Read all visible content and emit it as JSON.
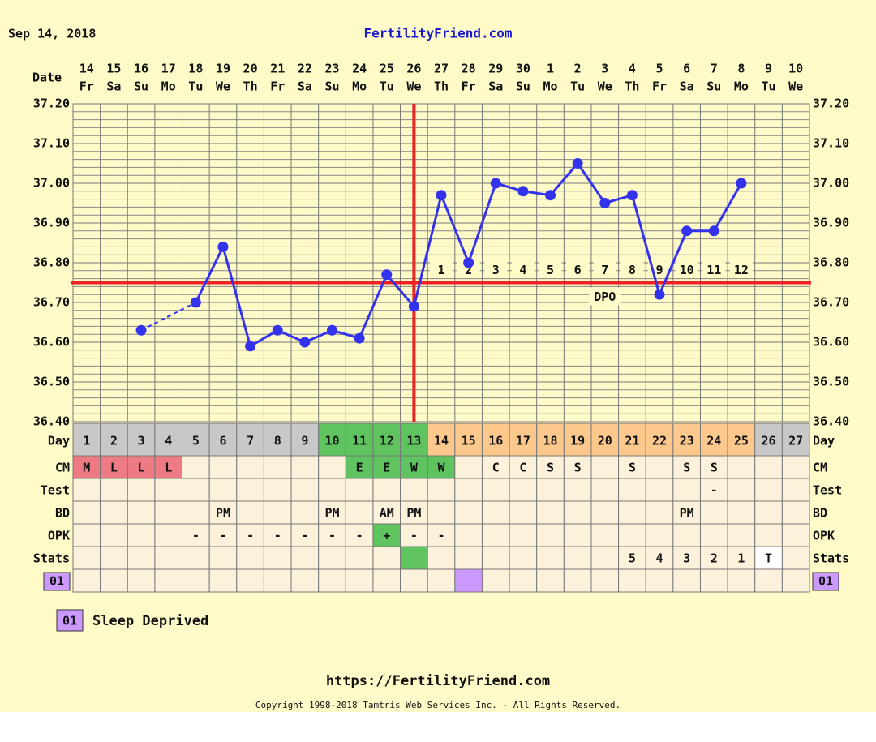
{
  "chart_data": {
    "type": "line",
    "date_text": "Sep 14, 2018",
    "title": "FertilityFriend.com",
    "x_label": "Date",
    "day_label": "Day",
    "dates": [
      "14",
      "15",
      "16",
      "17",
      "18",
      "19",
      "20",
      "21",
      "22",
      "23",
      "24",
      "25",
      "26",
      "27",
      "28",
      "29",
      "30",
      "1",
      "2",
      "3",
      "4",
      "5",
      "6",
      "7",
      "8",
      "9",
      "10"
    ],
    "weekdays": [
      "Fr",
      "Sa",
      "Su",
      "Mo",
      "Tu",
      "We",
      "Th",
      "Fr",
      "Sa",
      "Su",
      "Mo",
      "Tu",
      "We",
      "Th",
      "Fr",
      "Sa",
      "Su",
      "Mo",
      "Tu",
      "We",
      "Th",
      "Fr",
      "Sa",
      "Su",
      "Mo",
      "Tu",
      "We"
    ],
    "days": [
      1,
      2,
      3,
      4,
      5,
      6,
      7,
      8,
      9,
      10,
      11,
      12,
      13,
      14,
      15,
      16,
      17,
      18,
      19,
      20,
      21,
      22,
      23,
      24,
      25,
      26,
      27
    ],
    "day_colors": [
      "#c8c8c8",
      "#c8c8c8",
      "#c8c8c8",
      "#c8c8c8",
      "#c8c8c8",
      "#c8c8c8",
      "#c8c8c8",
      "#c8c8c8",
      "#c8c8c8",
      "#5fc35f",
      "#5fc35f",
      "#5fc35f",
      "#5fc35f",
      "#fcc88c",
      "#fcc88c",
      "#fcc88c",
      "#fcc88c",
      "#fcc88c",
      "#fcc88c",
      "#fcc88c",
      "#fcc88c",
      "#fcc88c",
      "#fcc88c",
      "#fcc88c",
      "#fcc88c",
      "#c8c8c8",
      "#c8c8c8"
    ],
    "values": [
      null,
      null,
      36.63,
      null,
      36.7,
      36.84,
      36.59,
      36.63,
      36.6,
      36.63,
      36.61,
      36.77,
      36.69,
      36.97,
      36.8,
      37.0,
      36.98,
      36.97,
      37.05,
      36.95,
      36.97,
      36.72,
      36.88,
      36.88,
      37.0,
      null,
      null
    ],
    "color": "#3333ee",
    "ylim": [
      36.4,
      37.2
    ],
    "yticks": [
      {
        "value": 36.4,
        "label": "36.40"
      },
      {
        "value": 36.5,
        "label": "36.50"
      },
      {
        "value": 36.6,
        "label": "36.60"
      },
      {
        "value": 36.7,
        "label": "36.70"
      },
      {
        "value": 36.8,
        "label": "36.80"
      },
      {
        "value": 36.9,
        "label": "36.90"
      },
      {
        "value": 37.0,
        "label": "37.00"
      },
      {
        "value": 37.1,
        "label": "37.10"
      },
      {
        "value": 37.2,
        "label": "37.20"
      }
    ],
    "coverline": 36.75,
    "ovulation_day": 13,
    "line_color": "#ee2222",
    "dpo": [
      null,
      null,
      null,
      null,
      null,
      null,
      null,
      null,
      null,
      null,
      null,
      null,
      null,
      1,
      2,
      3,
      4,
      5,
      6,
      7,
      8,
      9,
      10,
      11,
      12,
      null,
      null
    ],
    "dpo_label": "DPO",
    "rows": [
      {
        "label": "CM",
        "cells": [
          "M",
          "L",
          "L",
          "L",
          null,
          null,
          null,
          null,
          null,
          null,
          "E",
          "E",
          "W",
          "W",
          null,
          "C",
          "C",
          "S",
          "S",
          null,
          "S",
          null,
          "S",
          "S",
          null,
          null,
          null
        ],
        "colors": [
          "#ee7b83",
          "#ee7b83",
          "#ee7b83",
          "#ee7b83",
          null,
          null,
          null,
          null,
          null,
          null,
          "#5fc35f",
          "#5fc35f",
          "#5fc35f",
          "#5fc35f",
          null,
          null,
          null,
          null,
          null,
          null,
          null,
          null,
          null,
          null,
          null,
          null,
          null
        ]
      },
      {
        "label": "Test",
        "cells": [
          null,
          null,
          null,
          null,
          null,
          null,
          null,
          null,
          null,
          null,
          null,
          null,
          null,
          null,
          null,
          null,
          null,
          null,
          null,
          null,
          null,
          null,
          null,
          "-",
          null,
          null,
          null
        ]
      },
      {
        "label": "BD",
        "cells": [
          null,
          null,
          null,
          null,
          null,
          "PM",
          null,
          null,
          null,
          "PM",
          null,
          "AM",
          "PM",
          null,
          null,
          null,
          null,
          null,
          null,
          null,
          null,
          null,
          "PM",
          null,
          null,
          null,
          null
        ]
      },
      {
        "label": "OPK",
        "cells": [
          null,
          null,
          null,
          null,
          "-",
          "-",
          "-",
          "-",
          "-",
          "-",
          "-",
          "+",
          "-",
          "-",
          null,
          null,
          null,
          null,
          null,
          null,
          null,
          null,
          null,
          null,
          null,
          null,
          null
        ],
        "colors": [
          null,
          null,
          null,
          null,
          null,
          null,
          null,
          null,
          null,
          null,
          null,
          "#5fc35f",
          null,
          null,
          null,
          null,
          null,
          null,
          null,
          null,
          null,
          null,
          null,
          null,
          null,
          null,
          null
        ]
      },
      {
        "label": "Stats",
        "cells": [
          null,
          null,
          null,
          null,
          null,
          null,
          null,
          null,
          null,
          null,
          null,
          null,
          null,
          null,
          null,
          null,
          null,
          null,
          null,
          null,
          "5",
          "4",
          "3",
          "2",
          "1",
          "T",
          null
        ],
        "colors": [
          null,
          null,
          null,
          null,
          null,
          null,
          null,
          null,
          null,
          null,
          null,
          null,
          "#5fc35f",
          null,
          null,
          null,
          null,
          null,
          null,
          null,
          null,
          null,
          null,
          null,
          null,
          "#ffffff",
          null
        ]
      },
      {
        "label": "01",
        "label_color": "#cc99ff",
        "cells": [
          null,
          null,
          null,
          null,
          null,
          null,
          null,
          null,
          null,
          null,
          null,
          null,
          null,
          null,
          null,
          null,
          null,
          null,
          null,
          null,
          null,
          null,
          null,
          null,
          null,
          null,
          null
        ],
        "colors": [
          null,
          null,
          null,
          null,
          null,
          null,
          null,
          null,
          null,
          null,
          null,
          null,
          null,
          null,
          "#cc99ff",
          null,
          null,
          null,
          null,
          null,
          null,
          null,
          null,
          null,
          null,
          null,
          null
        ]
      }
    ],
    "legend": {
      "code": "01",
      "text": "Sleep Deprived",
      "color": "#cc99ff"
    },
    "footer_url": "https://FertilityFriend.com",
    "copyright": "Copyright 1998-2018 Tamtris Web Services Inc. - All Rights Reserved."
  }
}
